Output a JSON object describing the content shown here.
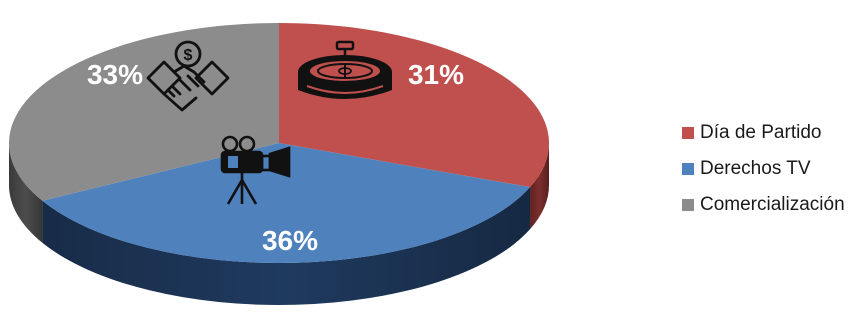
{
  "chart_data": {
    "type": "pie",
    "title": "",
    "categories": [
      "Día de Partido",
      "Derechos TV",
      "Comercialización"
    ],
    "values": [
      31,
      36,
      33
    ],
    "value_labels": [
      "31%",
      "36%",
      "33%"
    ],
    "colors": [
      "#c0504d",
      "#4f81bd",
      "#8c8c8c"
    ],
    "side_colors": [
      "#7d2e2c",
      "#1f3a5f",
      "#4d4d4d"
    ],
    "icons": [
      "stadium-icon",
      "video-camera-icon",
      "handshake-dollar-icon"
    ],
    "legend_position": "right",
    "style": "3d-tilted"
  }
}
